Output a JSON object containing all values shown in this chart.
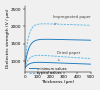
{
  "xlabel": "Thickness (μm)",
  "ylabel": "Dielectric strength (V / μm)",
  "xlim": [
    0,
    500
  ],
  "ylim": [
    700,
    2600
  ],
  "yticks": [
    1000,
    1500,
    2000,
    2500
  ],
  "xticks": [
    0,
    100,
    200,
    300,
    400,
    500
  ],
  "legend_entries": [
    "minimum values",
    "typical values"
  ],
  "solid_color": "#1a7abf",
  "dashed_color": "#5bb8e8",
  "label_impregnated": "Impregnated paper",
  "label_dried": "Dried paper",
  "bg_color": "#f0f0f0"
}
